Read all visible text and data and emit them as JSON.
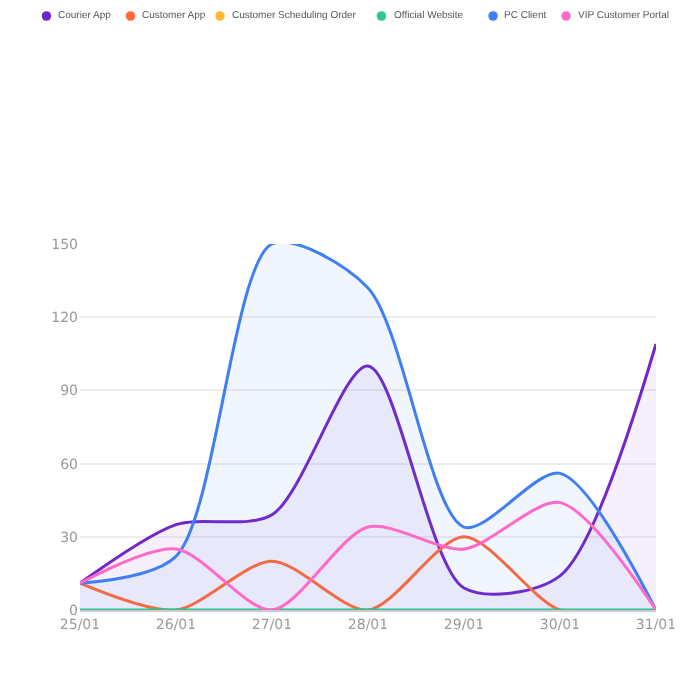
{
  "chart_data": {
    "type": "line",
    "categories": [
      "25/01",
      "26/01",
      "27/01",
      "28/01",
      "29/01",
      "30/01",
      "31/01"
    ],
    "series": [
      {
        "name": "Courier App",
        "color": "#7126c9",
        "type": "area",
        "values": [
          11,
          35,
          39,
          100,
          9,
          14,
          109
        ]
      },
      {
        "name": "Customer App",
        "color": "#ff6a39",
        "values": [
          11,
          0,
          20,
          0,
          30,
          0,
          0
        ]
      },
      {
        "name": "Customer Scheduling Order",
        "color": "#ffb536",
        "values": [
          null,
          null,
          null,
          null,
          null,
          null,
          null
        ]
      },
      {
        "name": "Official Website",
        "color": "#31c48d",
        "values": [
          0,
          0,
          0,
          0,
          0,
          0,
          0
        ]
      },
      {
        "name": "PC Client",
        "color": "#3f7ff4",
        "type": "area",
        "values": [
          11,
          22,
          150,
          132,
          34,
          56,
          0
        ]
      },
      {
        "name": "VIP Customer Portal",
        "color": "#ff69c8",
        "values": [
          11,
          25,
          0,
          34,
          25,
          44,
          0
        ]
      }
    ],
    "ylim": [
      0,
      150
    ],
    "yticks": [
      0,
      30,
      60,
      90,
      120,
      150
    ],
    "grid": "y",
    "legend": "top right",
    "marker": "none",
    "line_style": "solid"
  }
}
